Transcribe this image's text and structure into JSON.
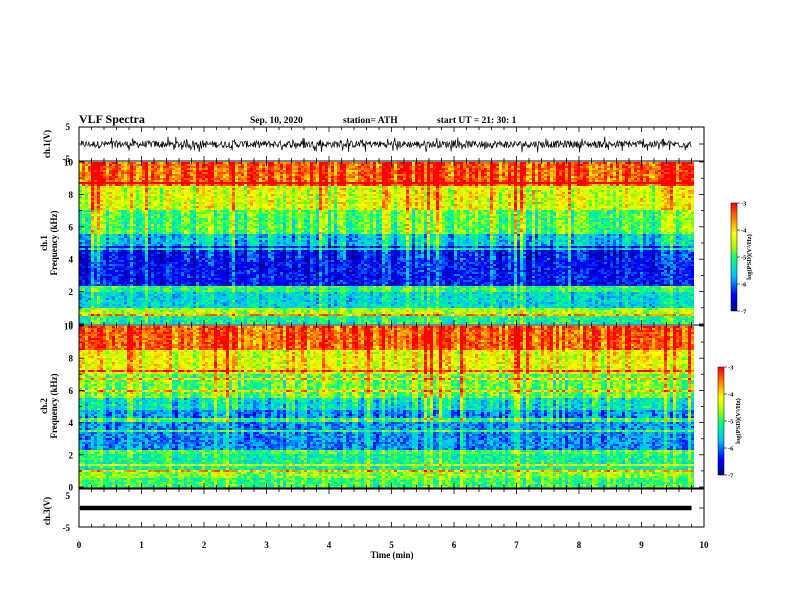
{
  "header": {
    "title": "VLF Spectra",
    "date": "Sep. 10, 2020",
    "station": "station= ATH",
    "start": "start  UT  =   21: 30: 1"
  },
  "chart_data": [
    {
      "type": "line",
      "panel": "ch1-waveform",
      "ylabel": "ch.1(V)",
      "ylim": [
        -5,
        5
      ],
      "yticks": [
        "5",
        "-5"
      ],
      "xlim": [
        0,
        10
      ],
      "series": [
        {
          "values_range": [
            -2.5,
            2.2
          ],
          "color": "#000000"
        }
      ]
    },
    {
      "type": "heatmap",
      "panel": "ch1-spectrogram",
      "ylabel_top": "ch.1",
      "ylabel": "Frequency (kHz)",
      "ylim": [
        0,
        10
      ],
      "yticks": [
        "0",
        "2",
        "4",
        "6",
        "8",
        "10"
      ],
      "xlim": [
        0,
        9.8
      ],
      "colorbar": {
        "range": [
          -7,
          -3
        ],
        "ticks": [
          "-3",
          "-4",
          "-5",
          "-6",
          "-7"
        ],
        "label": "log(PSD)(V²/Hz)"
      },
      "profile_by_freq_khz": {
        "0-0.5": -5.2,
        "0.5-1": -4.6,
        "1-2": -5.5,
        "2-2.3": -5.0,
        "2.3-4.8": -6.4,
        "4.8-5.5": -5.6,
        "5.5-7": -4.9,
        "7-8.5": -4.3,
        "8.5-10": -3.4
      }
    },
    {
      "type": "heatmap",
      "panel": "ch2-spectrogram",
      "ylabel_top": "ch.2",
      "ylabel": "Frequency (kHz)",
      "ylim": [
        0,
        10
      ],
      "yticks": [
        "0",
        "2",
        "4",
        "6",
        "8",
        "10"
      ],
      "xlim": [
        0,
        9.8
      ],
      "colorbar": {
        "range": [
          -7,
          -3
        ],
        "ticks": [
          "-3",
          "-4",
          "-5",
          "-6",
          "-7"
        ],
        "label": "log(PSD)(V²/Hz)"
      },
      "profile_by_freq_khz": {
        "0-0.5": -5.0,
        "0.5-1": -4.7,
        "1-2": -5.2,
        "2-2.3": -4.9,
        "2.3-4.8": -5.9,
        "4.8-5.5": -5.4,
        "5.5-7": -4.8,
        "7-8.5": -4.2,
        "8.5-10": -3.4
      }
    },
    {
      "type": "line",
      "panel": "ch3-waveform",
      "ylabel": "ch.3(V)",
      "ylim": [
        -5,
        5
      ],
      "yticks": [
        "5",
        "-5"
      ],
      "xlim": [
        0,
        9.8
      ],
      "series": [
        {
          "values_range": [
            -0.2,
            0.2
          ],
          "color": "#000000"
        }
      ]
    }
  ],
  "xaxis": {
    "label": "Time  (min)",
    "ticks": [
      "0",
      "1",
      "2",
      "3",
      "4",
      "5",
      "6",
      "7",
      "8",
      "9",
      "10"
    ],
    "range": [
      0,
      10
    ]
  }
}
